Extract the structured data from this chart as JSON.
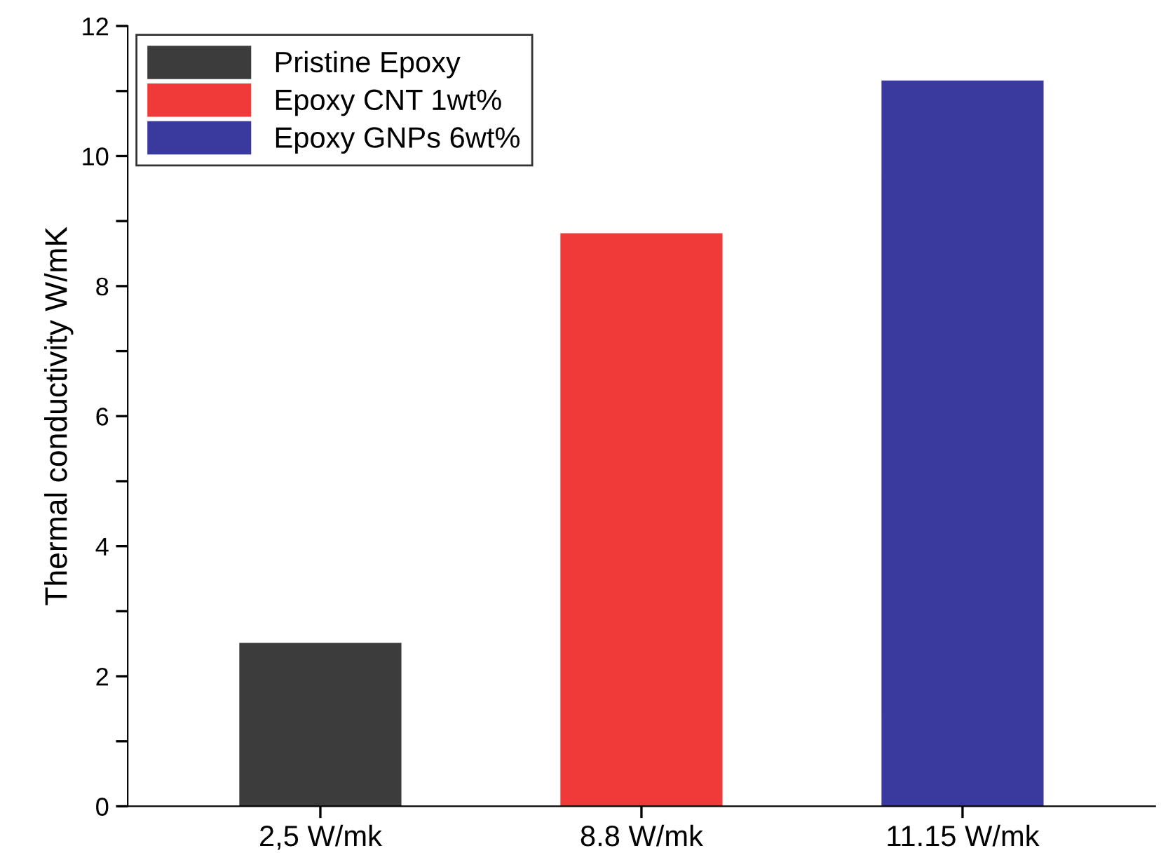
{
  "chart_data": {
    "type": "bar",
    "ylabel": "Thermal conductivity W/mK",
    "categories": [
      "2,5 W/mk",
      "8.8 W/mk",
      "11.15 W/mk"
    ],
    "series": [
      {
        "name": "Pristine Epoxy",
        "color": "#3c3c3c",
        "values": [
          2.5,
          null,
          null
        ]
      },
      {
        "name": "Epoxy CNT 1wt%",
        "color": "#f03a3a",
        "values": [
          null,
          8.8,
          null
        ]
      },
      {
        "name": "Epoxy GNPs 6wt%",
        "color": "#3a3a9e",
        "values": [
          null,
          null,
          11.15
        ]
      }
    ],
    "ylim": [
      0,
      12
    ],
    "yticks": [
      0,
      {
        "value": 1,
        "label": null
      },
      2,
      {
        "value": 3,
        "label": null
      },
      4,
      {
        "value": 5,
        "label": null
      },
      6,
      {
        "value": 7,
        "label": null
      },
      8,
      {
        "value": 9,
        "label": null
      },
      10,
      {
        "value": 11,
        "label": null
      },
      12
    ],
    "grid": false,
    "legend": "top left"
  }
}
